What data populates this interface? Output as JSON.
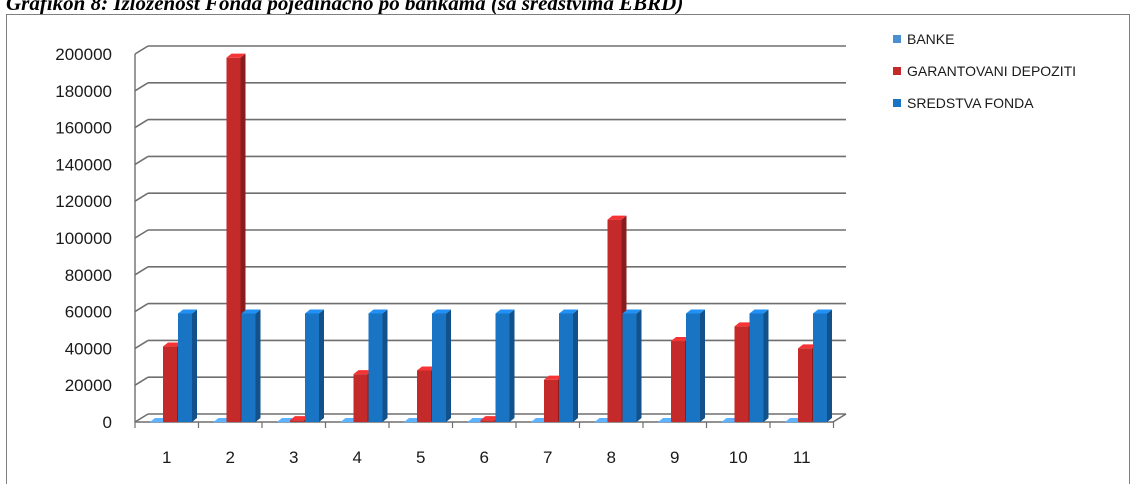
{
  "caption": "Grafikon 8: Izloženost Fonda pojedinačno po bankama (sa sredstvima EBRD)",
  "chart_data": {
    "type": "bar",
    "title": "",
    "xlabel": "",
    "ylabel": "",
    "categories": [
      "1",
      "2",
      "3",
      "4",
      "5",
      "6",
      "7",
      "8",
      "9",
      "10",
      "11"
    ],
    "ylim": [
      0,
      200000
    ],
    "yticks": [
      0,
      20000,
      40000,
      60000,
      80000,
      100000,
      120000,
      140000,
      160000,
      180000,
      200000
    ],
    "grid": true,
    "legend_position": "right",
    "style": "3d-columns",
    "series": [
      {
        "name": "BANKE",
        "color": "#4a8fd0",
        "values": [
          0,
          0,
          0,
          0,
          0,
          0,
          0,
          0,
          0,
          0,
          0
        ]
      },
      {
        "name": "GARANTOVANI DEPOZITI",
        "color": "#c42a2a",
        "values": [
          41000,
          198000,
          1000,
          26000,
          28000,
          1000,
          23000,
          110000,
          44000,
          52000,
          40000
        ]
      },
      {
        "name": "SREDSTVA FONDA",
        "color": "#1a74c4",
        "values": [
          59000,
          59000,
          59000,
          59000,
          59000,
          59000,
          59000,
          59000,
          59000,
          59000,
          59000
        ]
      }
    ]
  }
}
